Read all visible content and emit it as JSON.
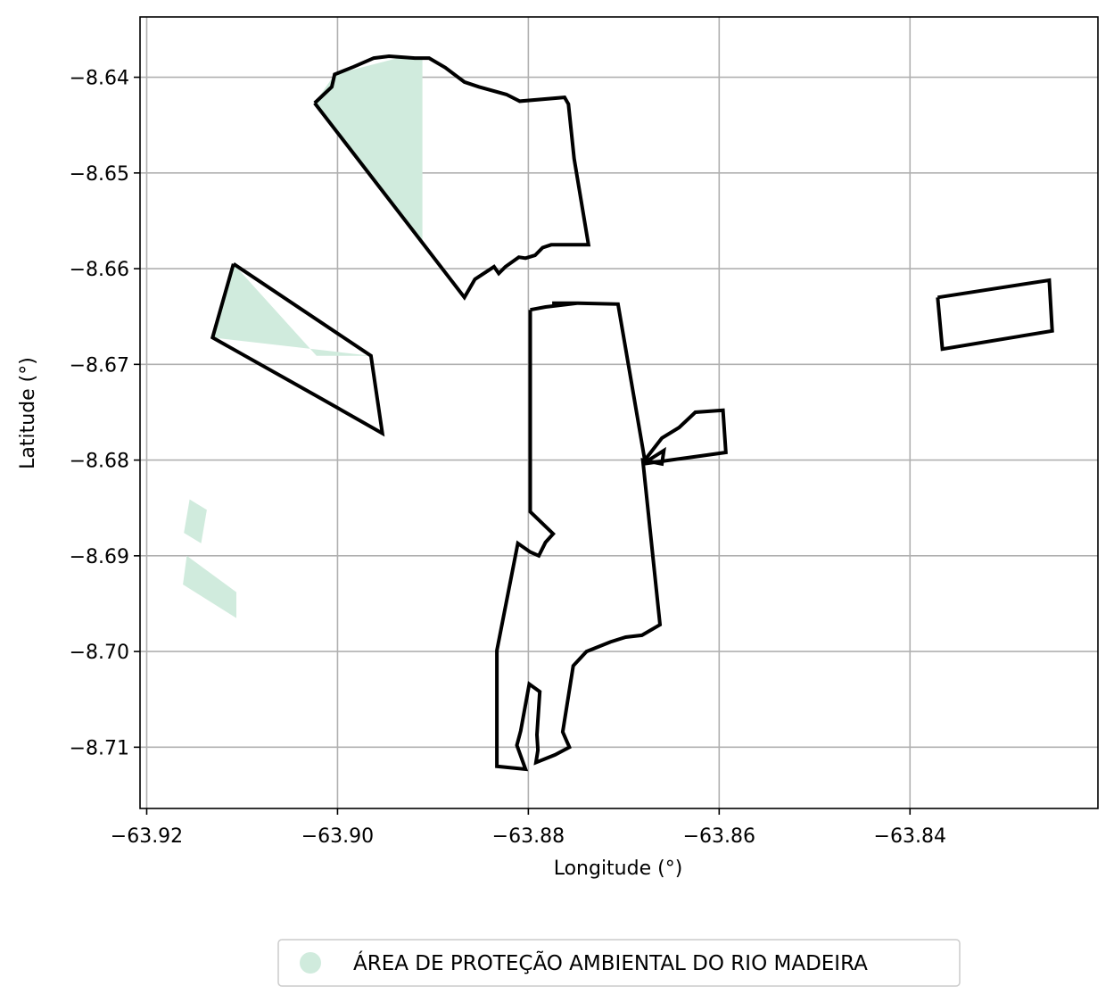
{
  "chart_data": {
    "type": "map",
    "xlabel": "Longitude (°)",
    "ylabel": "Latitude (°)",
    "xlim": [
      -63.9207,
      -63.8203
    ],
    "ylim": [
      -8.7164,
      -8.6337
    ],
    "xticks": [
      {
        "value": -63.92,
        "label": "−63.92"
      },
      {
        "value": -63.9,
        "label": "−63.90"
      },
      {
        "value": -63.88,
        "label": "−63.88"
      },
      {
        "value": -63.86,
        "label": "−63.86"
      },
      {
        "value": -63.84,
        "label": "−63.84"
      }
    ],
    "yticks": [
      {
        "value": -8.64,
        "label": "−8.64"
      },
      {
        "value": -8.65,
        "label": "−8.65"
      },
      {
        "value": -8.66,
        "label": "−8.66"
      },
      {
        "value": -8.67,
        "label": "−8.67"
      },
      {
        "value": -8.68,
        "label": "−8.68"
      },
      {
        "value": -8.69,
        "label": "−8.69"
      },
      {
        "value": -8.7,
        "label": "−8.70"
      },
      {
        "value": -8.71,
        "label": "−8.71"
      }
    ],
    "grid": true,
    "legend": {
      "placement": "bottom-center",
      "entries": [
        {
          "label": "ÁREA DE PROTEÇÃO AMBIENTAL DO RIO MADEIRA",
          "color": "#d0ebdd"
        }
      ]
    },
    "outline_color": "#000000",
    "protected_fill_color": "#d0ebdd",
    "protected_areas": [
      {
        "points": [
          [
            -63.9024,
            -8.6427
          ],
          [
            -63.9003,
            -8.6397
          ],
          [
            -63.8937,
            -8.638
          ],
          [
            -63.8911,
            -8.638
          ],
          [
            -63.8911,
            -8.6573
          ]
        ]
      },
      {
        "points": [
          [
            -63.9109,
            -8.6595
          ],
          [
            -63.9022,
            -8.6691
          ],
          [
            -63.8965,
            -8.6691
          ],
          [
            -63.9131,
            -8.6672
          ]
        ]
      },
      {
        "points": [
          [
            -63.9155,
            -8.6841
          ],
          [
            -63.9137,
            -8.6852
          ],
          [
            -63.9143,
            -8.6887
          ],
          [
            -63.9161,
            -8.6876
          ]
        ]
      },
      {
        "points": [
          [
            -63.9158,
            -8.69
          ],
          [
            -63.9106,
            -8.6938
          ],
          [
            -63.9106,
            -8.6965
          ],
          [
            -63.9162,
            -8.693
          ]
        ]
      }
    ],
    "boundaries": [
      {
        "points": [
          [
            -63.9024,
            -8.6427
          ],
          [
            -63.9006,
            -8.641
          ],
          [
            -63.9003,
            -8.6397
          ],
          [
            -63.8983,
            -8.6389
          ],
          [
            -63.8962,
            -8.638
          ],
          [
            -63.8946,
            -8.6378
          ],
          [
            -63.8919,
            -8.638
          ],
          [
            -63.8904,
            -8.638
          ],
          [
            -63.8887,
            -8.639
          ],
          [
            -63.8867,
            -8.6405
          ],
          [
            -63.8852,
            -8.641
          ],
          [
            -63.8823,
            -8.6418
          ],
          [
            -63.8809,
            -8.6425
          ],
          [
            -63.8762,
            -8.6421
          ],
          [
            -63.8758,
            -8.6428
          ],
          [
            -63.8752,
            -8.6485
          ],
          [
            -63.8737,
            -8.6575
          ],
          [
            -63.8776,
            -8.6575
          ],
          [
            -63.8785,
            -8.6578
          ],
          [
            -63.8793,
            -8.6586
          ],
          [
            -63.8803,
            -8.6589
          ],
          [
            -63.881,
            -8.6588
          ],
          [
            -63.8824,
            -8.6598
          ],
          [
            -63.8831,
            -8.6605
          ],
          [
            -63.8836,
            -8.6598
          ],
          [
            -63.8856,
            -8.6611
          ],
          [
            -63.8867,
            -8.663
          ],
          [
            -63.8911,
            -8.6573
          ],
          [
            -63.9024,
            -8.6427
          ]
        ]
      },
      {
        "points": [
          [
            -63.9109,
            -8.6595
          ],
          [
            -63.8965,
            -8.6691
          ],
          [
            -63.8953,
            -8.6772
          ],
          [
            -63.9022,
            -8.6733
          ],
          [
            -63.9131,
            -8.6672
          ],
          [
            -63.9109,
            -8.6595
          ]
        ]
      },
      {
        "points": [
          [
            -63.8798,
            -8.6643
          ],
          [
            -63.8782,
            -8.664
          ],
          [
            -63.8748,
            -8.6636
          ],
          [
            -63.8772,
            -8.6636
          ],
          [
            -63.8775,
            -8.6636
          ],
          [
            -63.8766,
            -8.6636
          ],
          [
            -63.8748,
            -8.6636
          ],
          [
            -63.8706,
            -8.6637
          ],
          [
            -63.8678,
            -8.68
          ],
          [
            -63.8677,
            -8.6802
          ],
          [
            -63.8658,
            -8.679
          ],
          [
            -63.866,
            -8.6804
          ],
          [
            -63.868,
            -8.68
          ],
          [
            -63.8662,
            -8.6972
          ],
          [
            -63.8681,
            -8.6983
          ],
          [
            -63.8698,
            -8.6985
          ],
          [
            -63.8714,
            -8.699
          ],
          [
            -63.8739,
            -8.7
          ],
          [
            -63.8753,
            -8.7015
          ],
          [
            -63.8764,
            -8.7084
          ],
          [
            -63.8757,
            -8.71
          ],
          [
            -63.8772,
            -8.7108
          ],
          [
            -63.8792,
            -8.7116
          ],
          [
            -63.879,
            -8.7103
          ],
          [
            -63.8791,
            -8.7087
          ],
          [
            -63.8788,
            -8.7042
          ],
          [
            -63.8799,
            -8.7034
          ],
          [
            -63.8808,
            -8.7083
          ],
          [
            -63.8812,
            -8.7098
          ],
          [
            -63.8803,
            -8.7123
          ],
          [
            -63.8833,
            -8.712
          ],
          [
            -63.8833,
            -8.6999
          ],
          [
            -63.8811,
            -8.6887
          ],
          [
            -63.8798,
            -8.6896
          ],
          [
            -63.8789,
            -8.69
          ],
          [
            -63.8782,
            -8.6886
          ],
          [
            -63.8774,
            -8.6877
          ],
          [
            -63.8798,
            -8.6854
          ],
          [
            -63.8798,
            -8.6643
          ]
        ]
      },
      {
        "points": [
          [
            -63.8678,
            -8.68
          ],
          [
            -63.866,
            -8.6777
          ],
          [
            -63.8642,
            -8.6766
          ],
          [
            -63.8625,
            -8.675
          ],
          [
            -63.8596,
            -8.6748
          ],
          [
            -63.8593,
            -8.6792
          ],
          [
            -63.868,
            -8.6804
          ]
        ]
      },
      {
        "points": [
          [
            -63.8371,
            -8.663
          ],
          [
            -63.8254,
            -8.6612
          ],
          [
            -63.8251,
            -8.6665
          ],
          [
            -63.8366,
            -8.6684
          ],
          [
            -63.8371,
            -8.663
          ]
        ]
      }
    ]
  }
}
